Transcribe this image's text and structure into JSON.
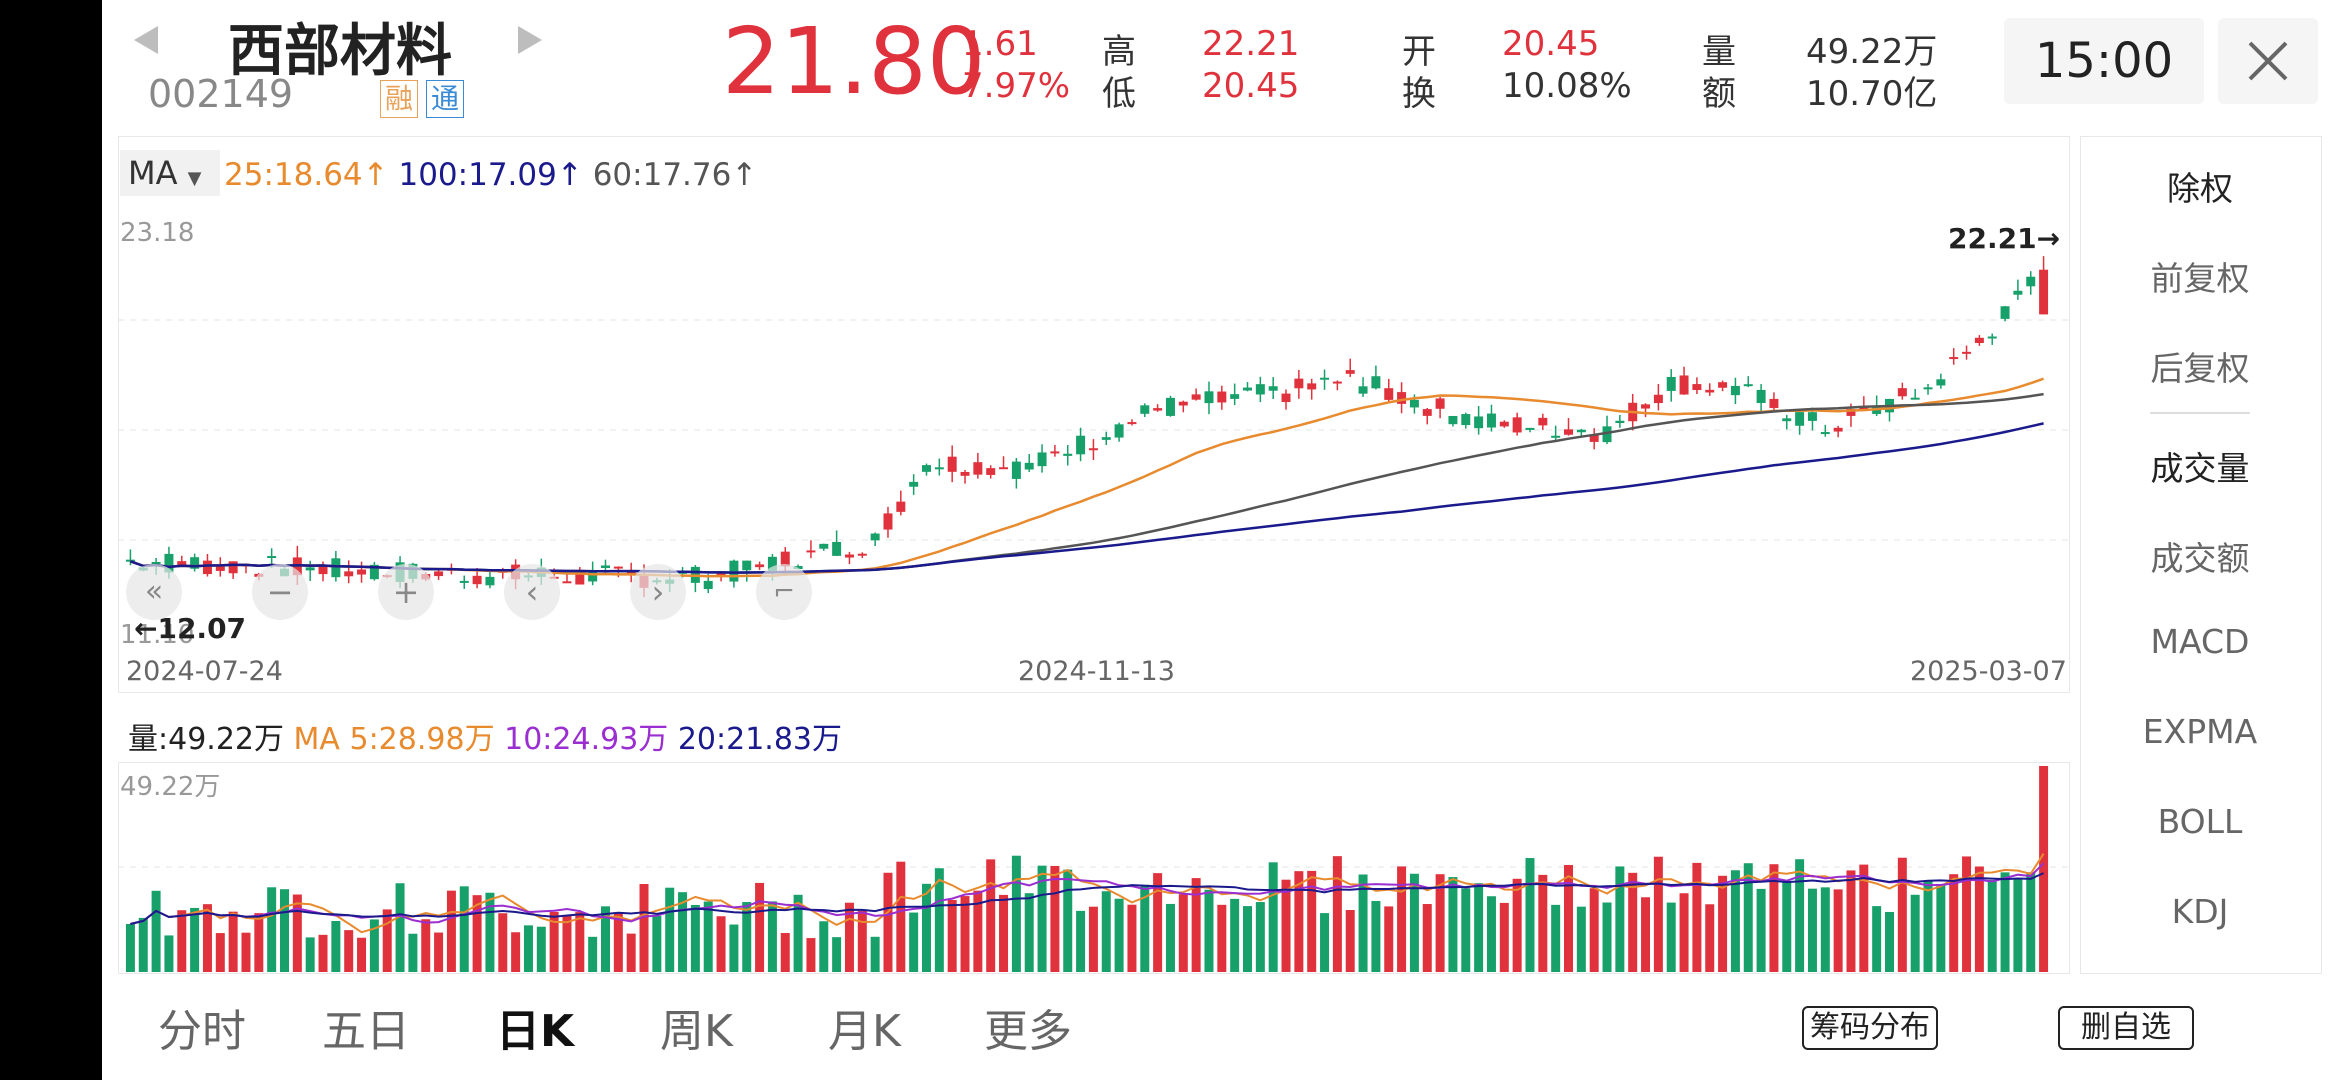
{
  "header": {
    "stock_name": "西部材料",
    "stock_code": "002149",
    "badge_rong": "融",
    "badge_tong": "通",
    "price": "21.80",
    "change": "1.61",
    "change_pct": "7.97%",
    "high_label": "高",
    "high_value": "22.21",
    "low_label": "低",
    "low_value": "20.45",
    "open_label": "开",
    "open_value": "20.45",
    "turnover_label": "换",
    "turnover_value": "10.08%",
    "volume_label": "量",
    "volume_value": "49.22万",
    "amount_label": "额",
    "amount_value": "10.70亿",
    "time": "15:00",
    "prev_icon": "triangle-left-icon",
    "next_icon": "triangle-right-icon",
    "close_icon": "close-icon"
  },
  "ma_bar": {
    "selector": "MA",
    "ma25": "25:18.64",
    "ma100": "100:17.09",
    "ma60": "60:17.76",
    "arrow": "↑"
  },
  "price_chart": {
    "y_top": "23.18",
    "y_bottom": "11.10",
    "max_label": "22.21→",
    "min_label": "←12.07",
    "dates": [
      "2024-07-24",
      "2024-11-13",
      "2025-03-07"
    ]
  },
  "volume_header": {
    "vol": "量:49.22万",
    "ma5": "MA 5:28.98万",
    "ma10": "10:24.93万",
    "ma20": "20:21.83万",
    "y_top": "49.22万"
  },
  "sidebar": {
    "items": [
      "除权",
      "前复权",
      "后复权",
      "成交量",
      "成交额",
      "MACD",
      "EXPMA",
      "BOLL",
      "KDJ"
    ]
  },
  "tabs": [
    "分时",
    "五日",
    "日K",
    "周K",
    "月K",
    "更多"
  ],
  "buttons": {
    "chip": "筹码分布",
    "remove": "删自选"
  },
  "colors": {
    "up": "#e0323c",
    "down": "#17a06a",
    "ma25": "#e88a2e",
    "ma60": "#555555",
    "ma100": "#1a1a8c",
    "ma10vol": "#9a2ed0"
  },
  "chart_data": {
    "type": "candlestick",
    "title": "",
    "x_range": [
      "2024-07-24",
      "2025-03-07"
    ],
    "ylim": [
      11.1,
      23.18
    ],
    "latest": {
      "open": 20.45,
      "high": 22.21,
      "low": 20.45,
      "close": 21.8
    },
    "extremes": {
      "max": 22.21,
      "min": 12.07
    },
    "ma_latest": {
      "MA25": 18.64,
      "MA60": 17.76,
      "MA100": 17.09
    },
    "volume": {
      "latest_wan": 49.22,
      "MA5_wan": 28.98,
      "MA10_wan": 24.93,
      "MA20_wan": 21.83
    }
  }
}
